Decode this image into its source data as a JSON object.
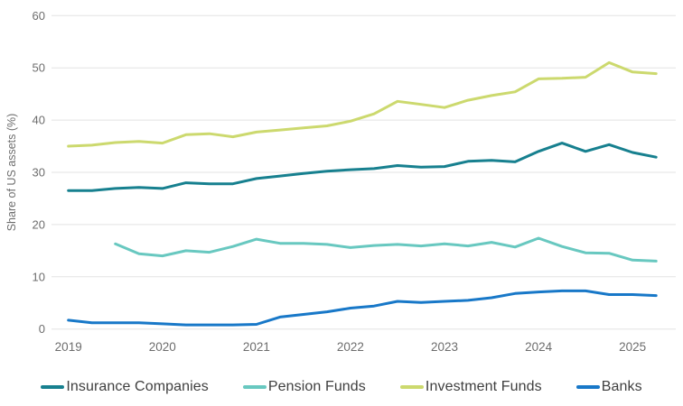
{
  "chart_data": {
    "type": "line",
    "title": "",
    "xlabel": "",
    "ylabel": "Share of US assets (%)",
    "ylim": [
      0,
      60
    ],
    "y_ticks": [
      0,
      10,
      20,
      30,
      40,
      50,
      60
    ],
    "x_tick_labels": [
      "2019",
      "2020",
      "2021",
      "2022",
      "2023",
      "2024",
      "2025"
    ],
    "x_quarters": [
      "2019Q1",
      "2019Q2",
      "2019Q3",
      "2019Q4",
      "2020Q1",
      "2020Q2",
      "2020Q3",
      "2020Q4",
      "2021Q1",
      "2021Q2",
      "2021Q3",
      "2021Q4",
      "2022Q1",
      "2022Q2",
      "2022Q3",
      "2022Q4",
      "2023Q1",
      "2023Q2",
      "2023Q3",
      "2023Q4",
      "2024Q1",
      "2024Q2",
      "2024Q3",
      "2024Q4",
      "2025Q1",
      "2025Q2"
    ],
    "grid": "horizontal",
    "legend_position": "bottom",
    "background_color": "#ffffff",
    "grid_color": "#e3e3e3",
    "axis_text_color": "#6d6d6d",
    "series": [
      {
        "name": "Insurance Companies",
        "color": "#17808f",
        "values": [
          26.5,
          26.5,
          26.9,
          27.1,
          26.9,
          28.0,
          27.8,
          27.8,
          28.8,
          29.3,
          29.8,
          30.2,
          30.5,
          30.7,
          31.3,
          31.0,
          31.1,
          32.1,
          32.3,
          32.0,
          34.0,
          35.6,
          34.0,
          35.3,
          33.8,
          32.9
        ]
      },
      {
        "name": "Pension Funds",
        "color": "#68c8c0",
        "values": [
          null,
          null,
          16.3,
          14.4,
          14.0,
          15.0,
          14.7,
          15.8,
          17.2,
          16.4,
          16.4,
          16.2,
          15.6,
          16.0,
          16.2,
          15.9,
          16.3,
          15.9,
          16.6,
          15.7,
          17.4,
          15.8,
          14.6,
          14.5,
          13.2,
          13.0
        ]
      },
      {
        "name": "Investment Funds",
        "color": "#ccd96e",
        "values": [
          35.0,
          35.2,
          35.7,
          35.9,
          35.6,
          37.2,
          37.4,
          36.8,
          37.7,
          38.1,
          38.5,
          38.9,
          39.8,
          41.2,
          43.6,
          43.0,
          42.4,
          43.8,
          44.7,
          45.4,
          47.9,
          48.0,
          48.2,
          51.0,
          49.2,
          48.9
        ]
      },
      {
        "name": "Banks",
        "color": "#1878c8",
        "values": [
          1.7,
          1.2,
          1.2,
          1.2,
          1.0,
          0.8,
          0.8,
          0.8,
          0.9,
          2.3,
          2.8,
          3.3,
          4.0,
          4.4,
          5.3,
          5.1,
          5.3,
          5.5,
          6.0,
          6.8,
          7.1,
          7.3,
          7.3,
          6.6,
          6.6,
          6.4
        ]
      }
    ]
  }
}
